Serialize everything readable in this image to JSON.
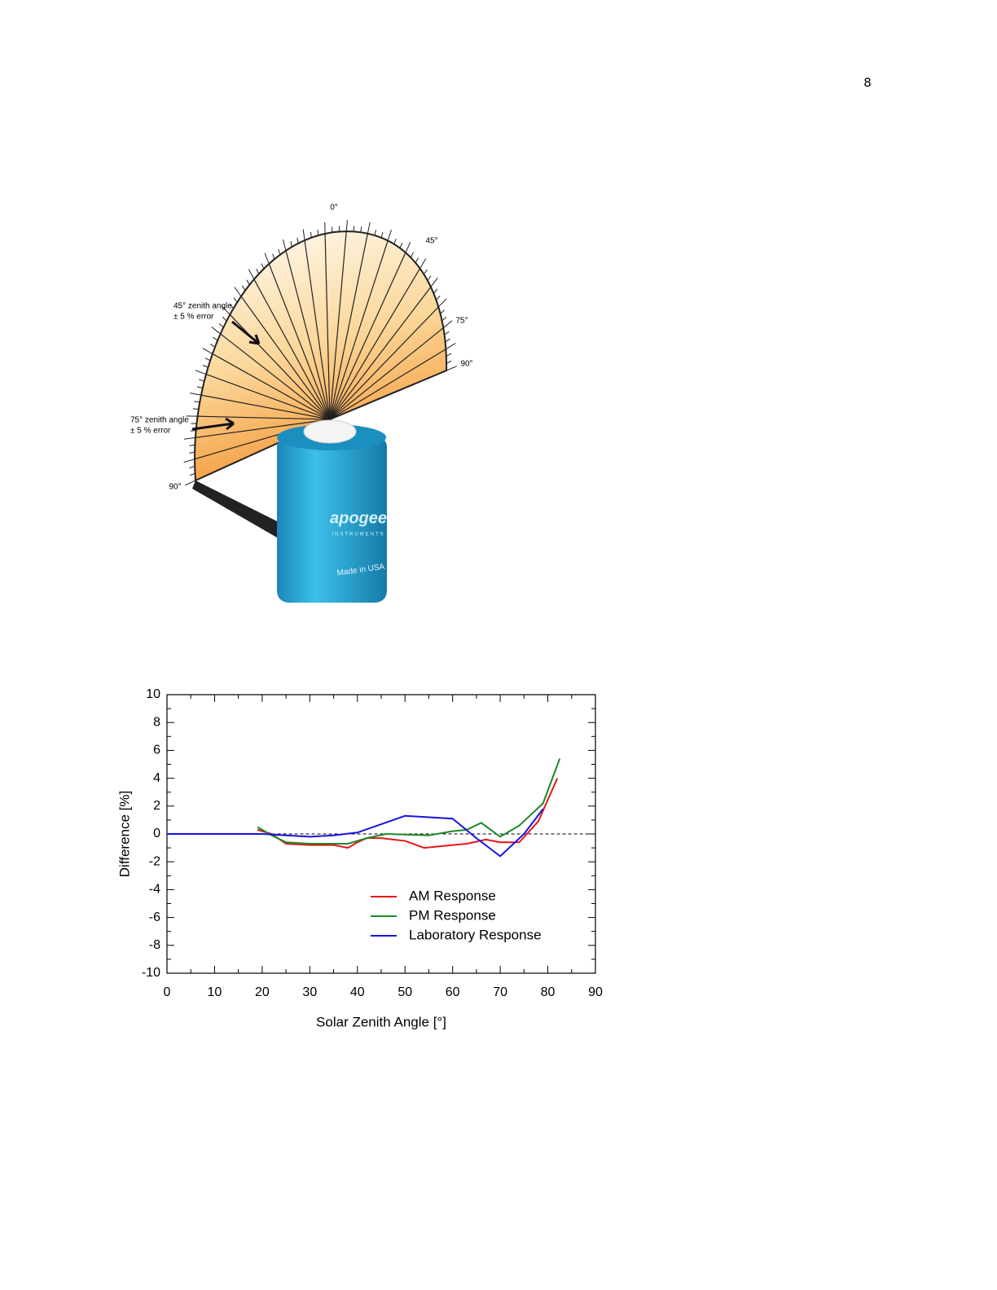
{
  "page_number": "8",
  "illustration": {
    "labels": [
      "0°",
      "45°",
      "75°",
      "90°",
      "90°"
    ],
    "callouts": [
      {
        "title": "45° zenith angle",
        "note": "± 5 % error"
      },
      {
        "title": "75° zenith angle",
        "note": "± 5 % error"
      }
    ],
    "brand": "apogee",
    "brand_sub": "INSTRUMENTS",
    "made_in": "Made in USA"
  },
  "chart_data": {
    "type": "line",
    "x_label": "Solar Zenith Angle [°]",
    "y_label": "Difference [%]",
    "xlim": [
      0,
      90
    ],
    "ylim": [
      -10,
      10
    ],
    "xticks": [
      0,
      10,
      20,
      30,
      40,
      50,
      60,
      70,
      80,
      90
    ],
    "yticks": [
      -10,
      -8,
      -6,
      -4,
      -2,
      0,
      2,
      4,
      6,
      8,
      10
    ],
    "reference_line": 0,
    "series": [
      {
        "name": "AM Response",
        "color": "#e8141a",
        "x": [
          19,
          22,
          25,
          30,
          35,
          38,
          40,
          42,
          45,
          50,
          54,
          60,
          63,
          67,
          70,
          74,
          78,
          82
        ],
        "values": [
          0.3,
          0,
          -0.7,
          -0.8,
          -0.8,
          -1.0,
          -0.6,
          -0.3,
          -0.3,
          -0.5,
          -1.0,
          -0.8,
          -0.7,
          -0.4,
          -0.6,
          -0.6,
          0.9,
          4.0
        ]
      },
      {
        "name": "PM Response",
        "color": "#1e8a2a",
        "x": [
          19,
          22,
          25,
          30,
          38,
          42,
          46,
          55,
          60,
          63,
          66,
          70,
          74,
          79,
          82.5
        ],
        "values": [
          0.5,
          -0.1,
          -0.6,
          -0.7,
          -0.7,
          -0.3,
          0,
          -0.1,
          0.2,
          0.3,
          0.8,
          -0.2,
          0.6,
          2.2,
          5.4
        ]
      },
      {
        "name": "Laboratory Response",
        "color": "#1414e0",
        "x": [
          0,
          20,
          25,
          30,
          35,
          40,
          45,
          50,
          55,
          60,
          65,
          70,
          75,
          79
        ],
        "values": [
          0,
          0,
          -0.1,
          -0.2,
          -0.1,
          0.1,
          0.7,
          1.3,
          1.2,
          1.1,
          -0.3,
          -1.6,
          0,
          1.8
        ]
      }
    ]
  }
}
